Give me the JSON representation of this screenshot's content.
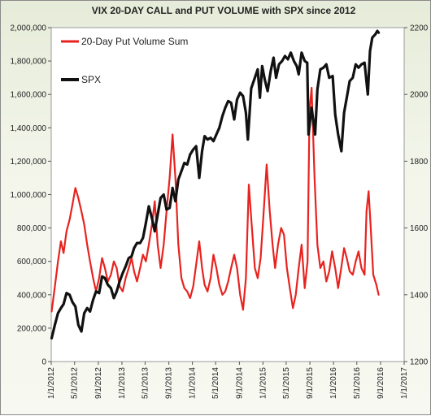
{
  "chart_data": {
    "type": "line",
    "title": "VIX 20-DAY CALL and PUT VOLUME with SPX since 2012",
    "legend_position": "top-left",
    "grid": false,
    "x_ticks": [
      "1/1/2012",
      "5/1/2012",
      "9/1/2012",
      "1/1/2013",
      "5/1/2013",
      "9/1/2013",
      "1/1/2014",
      "5/1/2014",
      "9/1/2014",
      "1/1/2015",
      "5/1/2015",
      "9/1/2015",
      "1/1/2016",
      "5/1/2016",
      "9/1/2016",
      "1/1/2017"
    ],
    "y_left": {
      "ylim": [
        0,
        2000000
      ],
      "ticks": [
        "0",
        "200,000",
        "400,000",
        "600,000",
        "800,000",
        "1,000,000",
        "1,200,000",
        "1,400,000",
        "1,600,000",
        "1,800,000",
        "2,000,000"
      ]
    },
    "y_right": {
      "ylim": [
        1200,
        2200
      ],
      "ticks": [
        "1200",
        "1400",
        "1600",
        "1800",
        "2000",
        "2200"
      ]
    },
    "series": [
      {
        "name": "20-Day Put Volume Sum",
        "color": "#e8231f",
        "axis": "left",
        "points": [
          [
            "2012-01-03",
            300000
          ],
          [
            "2012-01-20",
            450000
          ],
          [
            "2012-02-05",
            600000
          ],
          [
            "2012-02-20",
            720000
          ],
          [
            "2012-03-05",
            650000
          ],
          [
            "2012-03-20",
            780000
          ],
          [
            "2012-04-05",
            850000
          ],
          [
            "2012-04-20",
            940000
          ],
          [
            "2012-05-05",
            1040000
          ],
          [
            "2012-05-20",
            980000
          ],
          [
            "2012-06-05",
            900000
          ],
          [
            "2012-06-20",
            820000
          ],
          [
            "2012-07-05",
            700000
          ],
          [
            "2012-07-20",
            600000
          ],
          [
            "2012-08-05",
            500000
          ],
          [
            "2012-08-20",
            420000
          ],
          [
            "2012-09-05",
            500000
          ],
          [
            "2012-09-20",
            620000
          ],
          [
            "2012-10-05",
            560000
          ],
          [
            "2012-10-20",
            480000
          ],
          [
            "2012-11-05",
            520000
          ],
          [
            "2012-11-20",
            600000
          ],
          [
            "2012-12-05",
            560000
          ],
          [
            "2012-12-20",
            450000
          ],
          [
            "2013-01-05",
            420000
          ],
          [
            "2013-01-20",
            500000
          ],
          [
            "2013-02-05",
            560000
          ],
          [
            "2013-02-20",
            620000
          ],
          [
            "2013-03-05",
            540000
          ],
          [
            "2013-03-20",
            480000
          ],
          [
            "2013-04-05",
            560000
          ],
          [
            "2013-04-20",
            640000
          ],
          [
            "2013-05-05",
            600000
          ],
          [
            "2013-05-20",
            700000
          ],
          [
            "2013-06-05",
            820000
          ],
          [
            "2013-06-20",
            960000
          ],
          [
            "2013-07-05",
            700000
          ],
          [
            "2013-07-20",
            560000
          ],
          [
            "2013-08-05",
            700000
          ],
          [
            "2013-08-20",
            900000
          ],
          [
            "2013-09-05",
            1100000
          ],
          [
            "2013-09-20",
            1360000
          ],
          [
            "2013-10-05",
            1100000
          ],
          [
            "2013-10-20",
            700000
          ],
          [
            "2013-11-05",
            500000
          ],
          [
            "2013-11-20",
            440000
          ],
          [
            "2013-12-05",
            420000
          ],
          [
            "2013-12-20",
            380000
          ],
          [
            "2014-01-05",
            450000
          ],
          [
            "2014-01-20",
            580000
          ],
          [
            "2014-02-05",
            720000
          ],
          [
            "2014-02-20",
            560000
          ],
          [
            "2014-03-05",
            460000
          ],
          [
            "2014-03-20",
            420000
          ],
          [
            "2014-04-05",
            500000
          ],
          [
            "2014-04-20",
            640000
          ],
          [
            "2014-05-05",
            560000
          ],
          [
            "2014-05-20",
            460000
          ],
          [
            "2014-06-05",
            400000
          ],
          [
            "2014-06-20",
            420000
          ],
          [
            "2014-07-05",
            480000
          ],
          [
            "2014-07-20",
            560000
          ],
          [
            "2014-08-05",
            640000
          ],
          [
            "2014-08-20",
            560000
          ],
          [
            "2014-09-05",
            400000
          ],
          [
            "2014-09-20",
            310000
          ],
          [
            "2014-10-05",
            500000
          ],
          [
            "2014-10-20",
            1060000
          ],
          [
            "2014-11-05",
            800000
          ],
          [
            "2014-11-20",
            560000
          ],
          [
            "2014-12-05",
            500000
          ],
          [
            "2014-12-20",
            620000
          ],
          [
            "2015-01-05",
            900000
          ],
          [
            "2015-01-20",
            1180000
          ],
          [
            "2015-02-05",
            900000
          ],
          [
            "2015-02-20",
            700000
          ],
          [
            "2015-03-05",
            560000
          ],
          [
            "2015-03-20",
            700000
          ],
          [
            "2015-04-05",
            800000
          ],
          [
            "2015-04-20",
            760000
          ],
          [
            "2015-05-05",
            560000
          ],
          [
            "2015-05-20",
            440000
          ],
          [
            "2015-06-05",
            320000
          ],
          [
            "2015-06-20",
            400000
          ],
          [
            "2015-07-05",
            560000
          ],
          [
            "2015-07-20",
            700000
          ],
          [
            "2015-08-05",
            440000
          ],
          [
            "2015-08-20",
            600000
          ],
          [
            "2015-08-30",
            1500000
          ],
          [
            "2015-09-10",
            1640000
          ],
          [
            "2015-09-25",
            1100000
          ],
          [
            "2015-10-10",
            700000
          ],
          [
            "2015-10-25",
            560000
          ],
          [
            "2015-11-10",
            600000
          ],
          [
            "2015-11-25",
            480000
          ],
          [
            "2015-12-10",
            540000
          ],
          [
            "2015-12-25",
            660000
          ],
          [
            "2016-01-10",
            560000
          ],
          [
            "2016-01-25",
            440000
          ],
          [
            "2016-02-10",
            560000
          ],
          [
            "2016-02-25",
            680000
          ],
          [
            "2016-03-10",
            620000
          ],
          [
            "2016-03-25",
            540000
          ],
          [
            "2016-04-10",
            520000
          ],
          [
            "2016-04-25",
            600000
          ],
          [
            "2016-05-10",
            660000
          ],
          [
            "2016-05-25",
            560000
          ],
          [
            "2016-06-10",
            520000
          ],
          [
            "2016-06-20",
            900000
          ],
          [
            "2016-07-01",
            1020000
          ],
          [
            "2016-07-12",
            800000
          ],
          [
            "2016-07-25",
            520000
          ],
          [
            "2016-08-10",
            460000
          ],
          [
            "2016-08-22",
            400000
          ]
        ]
      },
      {
        "name": "SPX",
        "color": "#111111",
        "axis": "right",
        "points": [
          [
            "2012-01-03",
            1270
          ],
          [
            "2012-01-20",
            1310
          ],
          [
            "2012-02-05",
            1345
          ],
          [
            "2012-02-20",
            1360
          ],
          [
            "2012-03-05",
            1372
          ],
          [
            "2012-03-20",
            1405
          ],
          [
            "2012-04-05",
            1400
          ],
          [
            "2012-04-20",
            1378
          ],
          [
            "2012-05-05",
            1365
          ],
          [
            "2012-05-20",
            1310
          ],
          [
            "2012-06-05",
            1290
          ],
          [
            "2012-06-20",
            1345
          ],
          [
            "2012-07-05",
            1360
          ],
          [
            "2012-07-20",
            1350
          ],
          [
            "2012-08-05",
            1385
          ],
          [
            "2012-08-20",
            1410
          ],
          [
            "2012-09-05",
            1405
          ],
          [
            "2012-09-20",
            1455
          ],
          [
            "2012-10-05",
            1450
          ],
          [
            "2012-10-20",
            1430
          ],
          [
            "2012-11-05",
            1420
          ],
          [
            "2012-11-20",
            1390
          ],
          [
            "2012-12-05",
            1410
          ],
          [
            "2012-12-20",
            1440
          ],
          [
            "2013-01-05",
            1465
          ],
          [
            "2013-01-20",
            1485
          ],
          [
            "2013-02-05",
            1510
          ],
          [
            "2013-02-20",
            1515
          ],
          [
            "2013-03-05",
            1540
          ],
          [
            "2013-03-20",
            1555
          ],
          [
            "2013-04-05",
            1555
          ],
          [
            "2013-04-20",
            1570
          ],
          [
            "2013-05-05",
            1615
          ],
          [
            "2013-05-20",
            1665
          ],
          [
            "2013-06-05",
            1630
          ],
          [
            "2013-06-20",
            1590
          ],
          [
            "2013-07-05",
            1640
          ],
          [
            "2013-07-20",
            1690
          ],
          [
            "2013-08-05",
            1700
          ],
          [
            "2013-08-20",
            1655
          ],
          [
            "2013-09-05",
            1660
          ],
          [
            "2013-09-20",
            1720
          ],
          [
            "2013-10-05",
            1680
          ],
          [
            "2013-10-20",
            1745
          ],
          [
            "2013-11-05",
            1770
          ],
          [
            "2013-11-20",
            1795
          ],
          [
            "2013-12-05",
            1790
          ],
          [
            "2013-12-20",
            1820
          ],
          [
            "2014-01-05",
            1835
          ],
          [
            "2014-01-20",
            1845
          ],
          [
            "2014-02-05",
            1750
          ],
          [
            "2014-02-20",
            1830
          ],
          [
            "2014-03-05",
            1875
          ],
          [
            "2014-03-20",
            1865
          ],
          [
            "2014-04-05",
            1870
          ],
          [
            "2014-04-20",
            1860
          ],
          [
            "2014-05-05",
            1880
          ],
          [
            "2014-05-20",
            1900
          ],
          [
            "2014-06-05",
            1935
          ],
          [
            "2014-06-20",
            1960
          ],
          [
            "2014-07-05",
            1980
          ],
          [
            "2014-07-20",
            1975
          ],
          [
            "2014-08-05",
            1925
          ],
          [
            "2014-08-20",
            1985
          ],
          [
            "2014-09-05",
            2005
          ],
          [
            "2014-09-20",
            1995
          ],
          [
            "2014-10-05",
            1945
          ],
          [
            "2014-10-15",
            1865
          ],
          [
            "2014-11-01",
            2018
          ],
          [
            "2014-11-20",
            2050
          ],
          [
            "2014-12-05",
            2075
          ],
          [
            "2014-12-16",
            1990
          ],
          [
            "2014-12-28",
            2085
          ],
          [
            "2015-01-10",
            2045
          ],
          [
            "2015-01-25",
            2010
          ],
          [
            "2015-02-10",
            2070
          ],
          [
            "2015-02-25",
            2110
          ],
          [
            "2015-03-10",
            2050
          ],
          [
            "2015-03-25",
            2090
          ],
          [
            "2015-04-10",
            2100
          ],
          [
            "2015-04-25",
            2115
          ],
          [
            "2015-05-10",
            2105
          ],
          [
            "2015-05-25",
            2125
          ],
          [
            "2015-06-10",
            2100
          ],
          [
            "2015-06-25",
            2085
          ],
          [
            "2015-07-05",
            2060
          ],
          [
            "2015-07-20",
            2125
          ],
          [
            "2015-08-05",
            2100
          ],
          [
            "2015-08-18",
            2095
          ],
          [
            "2015-08-25",
            1880
          ],
          [
            "2015-09-10",
            1960
          ],
          [
            "2015-09-28",
            1880
          ],
          [
            "2015-10-10",
            2015
          ],
          [
            "2015-10-25",
            2075
          ],
          [
            "2015-11-10",
            2080
          ],
          [
            "2015-11-25",
            2090
          ],
          [
            "2015-12-10",
            2050
          ],
          [
            "2015-12-28",
            2055
          ],
          [
            "2016-01-10",
            1940
          ],
          [
            "2016-01-25",
            1880
          ],
          [
            "2016-02-11",
            1830
          ],
          [
            "2016-02-25",
            1945
          ],
          [
            "2016-03-10",
            1990
          ],
          [
            "2016-03-25",
            2040
          ],
          [
            "2016-04-10",
            2050
          ],
          [
            "2016-04-25",
            2090
          ],
          [
            "2016-05-10",
            2080
          ],
          [
            "2016-05-25",
            2090
          ],
          [
            "2016-06-10",
            2095
          ],
          [
            "2016-06-27",
            2000
          ],
          [
            "2016-07-08",
            2130
          ],
          [
            "2016-07-20",
            2170
          ],
          [
            "2016-08-05",
            2180
          ],
          [
            "2016-08-15",
            2190
          ],
          [
            "2016-08-22",
            2185
          ]
        ]
      }
    ]
  }
}
